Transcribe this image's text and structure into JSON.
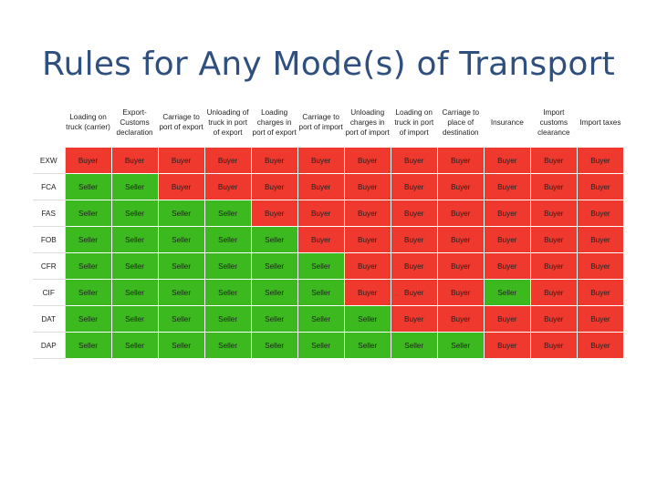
{
  "title": "Rules for Any Mode(s) of Transport",
  "colors": {
    "buyer": "#f0392e",
    "seller": "#3cb91f",
    "title": "#2f4f7f"
  },
  "columns": [
    "Loading on truck (carrier)",
    "Export-Customs declaration",
    "Carriage to port of export",
    "Unloading of truck in port of export",
    "Loading charges in port of export",
    "Carriage to port of import",
    "Unloading charges in port of import",
    "Loading on truck in port of import",
    "Carriage to place of destination",
    "Insurance",
    "Import customs clearance",
    "Import taxes"
  ],
  "rows": [
    {
      "term": "EXW",
      "cells": [
        "Buyer",
        "Buyer",
        "Buyer",
        "Buyer",
        "Buyer",
        "Buyer",
        "Buyer",
        "Buyer",
        "Buyer",
        "Buyer",
        "Buyer",
        "Buyer"
      ]
    },
    {
      "term": "FCA",
      "cells": [
        "Seller",
        "Seller",
        "Buyer",
        "Buyer",
        "Buyer",
        "Buyer",
        "Buyer",
        "Buyer",
        "Buyer",
        "Buyer",
        "Buyer",
        "Buyer"
      ]
    },
    {
      "term": "FAS",
      "cells": [
        "Seller",
        "Seller",
        "Seller",
        "Seller",
        "Buyer",
        "Buyer",
        "Buyer",
        "Buyer",
        "Buyer",
        "Buyer",
        "Buyer",
        "Buyer"
      ]
    },
    {
      "term": "FOB",
      "cells": [
        "Seller",
        "Seller",
        "Seller",
        "Seller",
        "Seller",
        "Buyer",
        "Buyer",
        "Buyer",
        "Buyer",
        "Buyer",
        "Buyer",
        "Buyer"
      ]
    },
    {
      "term": "CFR",
      "cells": [
        "Seller",
        "Seller",
        "Seller",
        "Seller",
        "Seller",
        "Seller",
        "Buyer",
        "Buyer",
        "Buyer",
        "Buyer",
        "Buyer",
        "Buyer"
      ]
    },
    {
      "term": "CIF",
      "cells": [
        "Seller",
        "Seller",
        "Seller",
        "Seller",
        "Seller",
        "Seller",
        "Buyer",
        "Buyer",
        "Buyer",
        "Seller",
        "Buyer",
        "Buyer"
      ]
    },
    {
      "term": "DAT",
      "cells": [
        "Seller",
        "Seller",
        "Seller",
        "Seller",
        "Seller",
        "Seller",
        "Seller",
        "Buyer",
        "Buyer",
        "Buyer",
        "Buyer",
        "Buyer"
      ]
    },
    {
      "term": "DAP",
      "cells": [
        "Seller",
        "Seller",
        "Seller",
        "Seller",
        "Seller",
        "Seller",
        "Seller",
        "Seller",
        "Seller",
        "Buyer",
        "Buyer",
        "Buyer"
      ]
    }
  ]
}
